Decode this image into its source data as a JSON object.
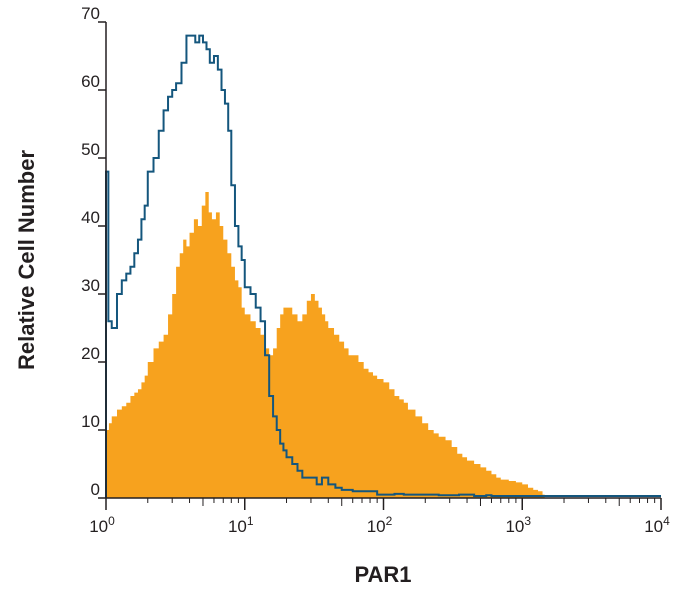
{
  "chart_data": {
    "type": "histogram",
    "xlabel": "PAR1",
    "ylabel": "Relative Cell Number",
    "xscale": "log",
    "xlim": [
      1,
      10000
    ],
    "ylim": [
      0,
      70
    ],
    "x_ticks": [
      {
        "value": 1,
        "base": "10",
        "exp": "0"
      },
      {
        "value": 10,
        "base": "10",
        "exp": "1"
      },
      {
        "value": 100,
        "base": "10",
        "exp": "2"
      },
      {
        "value": 1000,
        "base": "10",
        "exp": "3"
      },
      {
        "value": 10000,
        "base": "10",
        "exp": "4"
      }
    ],
    "y_ticks": [
      0,
      10,
      20,
      30,
      40,
      50,
      60,
      70
    ],
    "grid": false,
    "legend": "none",
    "series": [
      {
        "style": "filled",
        "color": "#f7a21e",
        "x": [
          1.0,
          1.05,
          1.1,
          1.2,
          1.3,
          1.4,
          1.5,
          1.6,
          1.7,
          1.8,
          1.9,
          2.0,
          2.2,
          2.4,
          2.6,
          2.8,
          3.0,
          3.2,
          3.4,
          3.6,
          3.8,
          4.0,
          4.3,
          4.6,
          4.9,
          5.2,
          5.5,
          5.8,
          6.2,
          6.6,
          7.0,
          7.5,
          8.0,
          8.5,
          9.0,
          9.5,
          10,
          11,
          12,
          13,
          14,
          15,
          16,
          17,
          18,
          19,
          20,
          22,
          24,
          26,
          28,
          30,
          32,
          34,
          36,
          38,
          40,
          44,
          48,
          52,
          56,
          60,
          66,
          72,
          78,
          84,
          90,
          100,
          110,
          120,
          130,
          140,
          150,
          170,
          190,
          210,
          230,
          250,
          280,
          310,
          340,
          370,
          400,
          450,
          500,
          550,
          600,
          650,
          700,
          800,
          900,
          1000,
          1100,
          1200,
          1300,
          1400,
          1450
        ],
        "y": [
          10,
          11,
          12,
          13,
          13.5,
          14,
          15,
          15.5,
          16,
          17,
          18,
          20,
          22,
          23,
          24,
          27,
          30,
          34,
          36,
          38,
          37,
          39,
          41,
          40,
          43,
          45,
          42,
          41,
          42,
          40,
          38,
          36,
          34,
          32,
          31,
          28,
          27,
          26,
          25,
          24,
          22,
          21,
          22,
          25,
          27,
          28,
          28,
          27,
          26,
          27,
          29,
          30,
          29,
          28,
          27,
          26,
          25,
          24,
          23,
          22,
          21,
          21,
          20,
          19,
          18.5,
          18,
          17.5,
          17,
          16,
          15,
          14.5,
          14,
          13,
          12,
          11,
          10,
          9.5,
          9,
          8.5,
          7.5,
          6.5,
          6,
          5.5,
          5,
          4.5,
          4,
          3.5,
          3,
          2.7,
          2.5,
          2.3,
          2,
          1.5,
          1.2,
          1,
          0.5,
          0
        ]
      },
      {
        "style": "outline",
        "color": "#14567d",
        "x": [
          1.0,
          1.04,
          1.1,
          1.2,
          1.3,
          1.4,
          1.5,
          1.6,
          1.7,
          1.8,
          1.9,
          2.0,
          2.2,
          2.4,
          2.6,
          2.8,
          3.0,
          3.2,
          3.5,
          3.8,
          4.1,
          4.4,
          4.7,
          5.0,
          5.3,
          5.6,
          6.0,
          6.4,
          6.8,
          7.2,
          7.6,
          8.0,
          8.5,
          9.0,
          9.5,
          10,
          11,
          12,
          13,
          14,
          15,
          16,
          17,
          18,
          19,
          20,
          22,
          24,
          26,
          28,
          30,
          33,
          36,
          40,
          45,
          50,
          60,
          70,
          80,
          90,
          100,
          120,
          140,
          160,
          180,
          200,
          250,
          300,
          350,
          400,
          450,
          500,
          550,
          600,
          700,
          800,
          1000,
          1200,
          1400,
          2000,
          4000,
          10000
        ],
        "y": [
          48,
          26,
          25,
          30,
          32,
          33,
          34,
          36,
          38,
          41,
          43,
          48,
          50,
          54,
          57,
          59,
          60,
          61,
          64,
          68,
          68,
          67,
          68,
          67,
          66,
          64,
          65,
          63,
          60,
          58,
          54,
          46,
          40,
          37,
          35,
          31,
          30,
          28,
          26,
          21,
          15,
          12,
          10,
          8,
          7,
          6,
          5,
          4,
          3,
          3,
          3,
          2,
          3,
          2,
          1.5,
          1.2,
          1,
          1,
          1,
          0.5,
          0.5,
          0.6,
          0.5,
          0.5,
          0.5,
          0.5,
          0.4,
          0.4,
          0.5,
          0.5,
          0.3,
          0.3,
          0.4,
          0.3,
          0.3,
          0.3,
          0.3,
          0.3,
          0.3,
          0.3,
          0.3,
          0.3
        ]
      }
    ]
  }
}
